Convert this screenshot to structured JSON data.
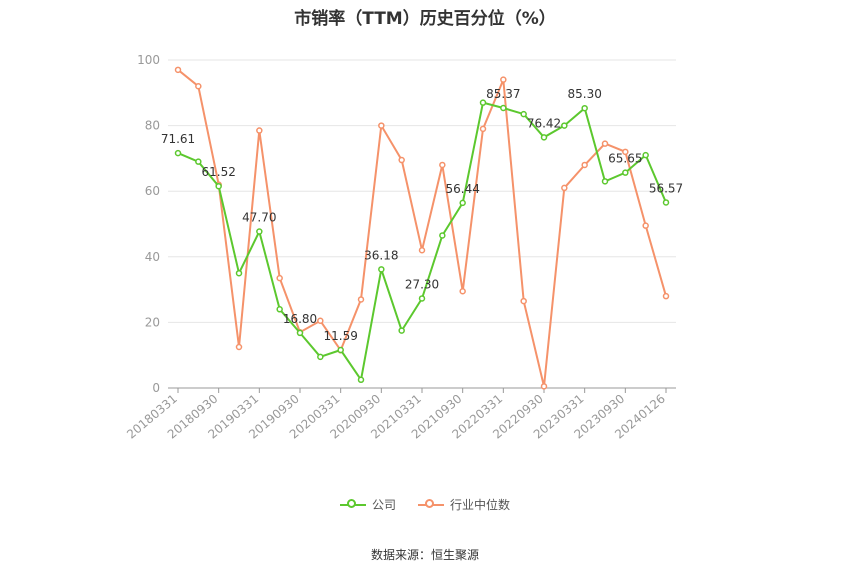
{
  "title": "市销率（TTM）历史百分位（%）",
  "source": "数据来源：恒生聚源",
  "colors": {
    "company": "#5cc82e",
    "industry": "#f5926a",
    "grid": "#e6e6e6",
    "axis": "#999999"
  },
  "chart_data": {
    "type": "line",
    "title": "市销率（TTM）历史百分位（%）",
    "xlabel": "",
    "ylabel": "",
    "ylim": [
      0,
      100
    ],
    "yticks": [
      0,
      20,
      40,
      60,
      80,
      100
    ],
    "grid": true,
    "legend_position": "bottom",
    "x": [
      "20180331",
      "20180630",
      "20180930",
      "20181231",
      "20190331",
      "20190630",
      "20190930",
      "20191231",
      "20200331",
      "20200630",
      "20200930",
      "20201231",
      "20210331",
      "20210630",
      "20210930",
      "20211231",
      "20220331",
      "20220630",
      "20220930",
      "20221231",
      "20230331",
      "20230630",
      "20230930",
      "20231231",
      "20240126"
    ],
    "xtick_labels": [
      "20180331",
      "20180930",
      "20190331",
      "20190930",
      "20200331",
      "20200930",
      "20210331",
      "20210930",
      "20220331",
      "20220930",
      "20230331",
      "20230930",
      "20240126"
    ],
    "series": [
      {
        "name": "公司",
        "color": "#5cc82e",
        "values": [
          71.61,
          69.0,
          61.52,
          35.0,
          47.7,
          24.0,
          16.8,
          9.5,
          11.59,
          2.5,
          36.18,
          17.5,
          27.3,
          46.5,
          56.44,
          87.0,
          85.37,
          83.5,
          76.42,
          80.0,
          85.3,
          63.0,
          65.65,
          71.0,
          56.57
        ],
        "labels": {
          "0": "71.61",
          "2": "61.52",
          "4": "47.70",
          "6": "16.80",
          "8": "11.59",
          "10": "36.18",
          "12": "27.30",
          "14": "56.44",
          "16": "85.37",
          "18": "76.42",
          "20": "85.30",
          "22": "65.65",
          "24": "56.57"
        }
      },
      {
        "name": "行业中位数",
        "color": "#f5926a",
        "values": [
          97.0,
          92.0,
          62.0,
          12.5,
          78.5,
          33.5,
          17.0,
          20.5,
          11.5,
          27.0,
          80.0,
          69.5,
          42.0,
          68.0,
          29.5,
          79.0,
          94.0,
          26.5,
          0.5,
          61.0,
          68.0,
          74.5,
          72.0,
          49.5,
          28.0
        ]
      }
    ]
  }
}
